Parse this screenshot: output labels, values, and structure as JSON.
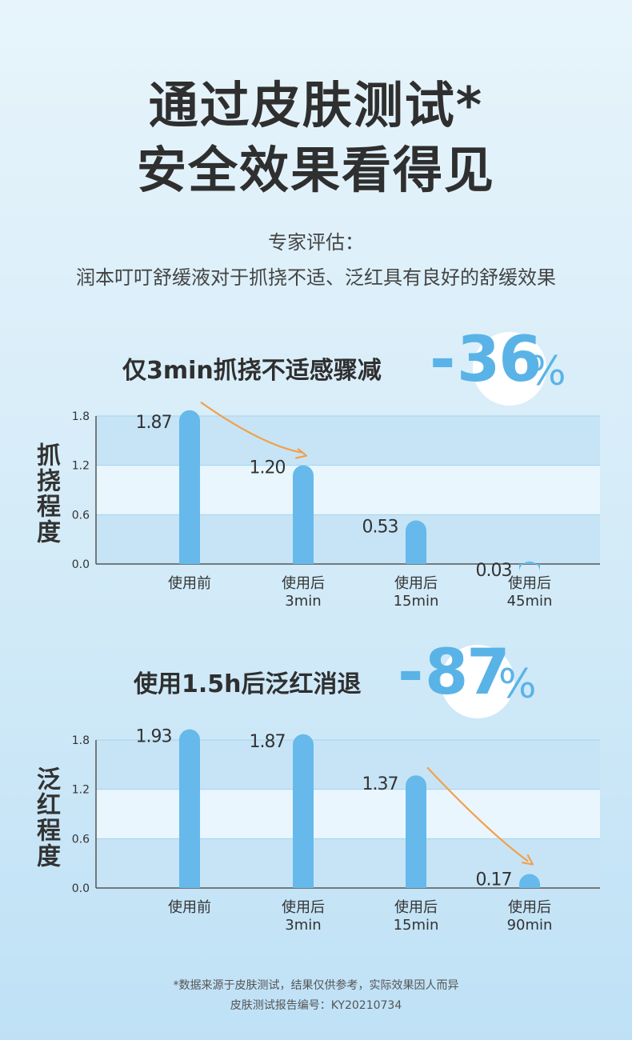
{
  "title_line1": "通过皮肤测试*",
  "title_line2": "安全效果看得见",
  "subtitle_line1": "专家评估：",
  "subtitle_line2": "润本叮叮舒缓液对于抓挠不适、泛红具有良好的舒缓效果",
  "footer_line1": "*数据来源于皮肤测试，结果仅供参考，实际效果因人而异",
  "footer_line2": "皮肤测试报告编号：KY20210734",
  "colors": {
    "bar": "#66b9ea",
    "arrow": "#f3a04a",
    "band_dark": "#c6e4f6",
    "band_light": "#e9f6fd",
    "accent": "#5ab3e7"
  },
  "chart_data": [
    {
      "type": "bar",
      "headline": "仅3min抓挠不适感骤减",
      "reduction_sign": "-",
      "reduction_value": "36",
      "reduction_unit": "%",
      "ylabel": "抓挠程度",
      "yticks": [
        "1.8",
        "1.2",
        "0.6",
        "0.0"
      ],
      "ylim": [
        0,
        1.8
      ],
      "categories": [
        {
          "line1": "使用前",
          "line2": ""
        },
        {
          "line1": "使用后",
          "line2": "3min"
        },
        {
          "line1": "使用后",
          "line2": "15min"
        },
        {
          "line1": "使用后",
          "line2": "45min"
        }
      ],
      "values": [
        1.87,
        1.2,
        0.53,
        0.03
      ],
      "value_labels": [
        "1.87",
        "1.20",
        "0.53",
        "0.03"
      ],
      "arrow_from_index": 0,
      "arrow_to_index": 1
    },
    {
      "type": "bar",
      "headline": "使用1.5h后泛红消退",
      "reduction_sign": "-",
      "reduction_value": "87",
      "reduction_unit": "%",
      "ylabel": "泛红程度",
      "yticks": [
        "1.8",
        "1.2",
        "0.6",
        "0.0"
      ],
      "ylim": [
        0,
        1.8
      ],
      "categories": [
        {
          "line1": "使用前",
          "line2": ""
        },
        {
          "line1": "使用后",
          "line2": "3min"
        },
        {
          "line1": "使用后",
          "line2": "15min"
        },
        {
          "line1": "使用后",
          "line2": "90min"
        }
      ],
      "values": [
        1.93,
        1.87,
        1.37,
        0.17
      ],
      "value_labels": [
        "1.93",
        "1.87",
        "1.37",
        "0.17"
      ],
      "arrow_from_index": 2,
      "arrow_to_index": 3
    }
  ]
}
